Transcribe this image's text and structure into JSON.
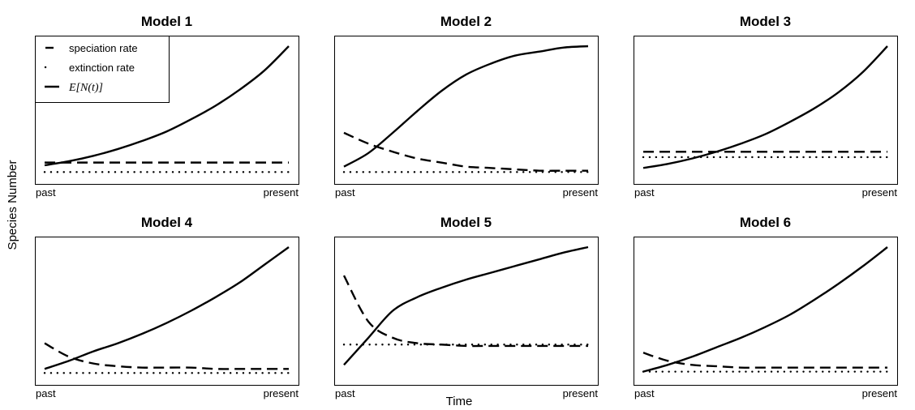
{
  "figure": {
    "ylabel": "Species Number",
    "xlabel": "Time"
  },
  "chart_data": [
    {
      "type": "line",
      "title": "Model 1",
      "x_tick_labels": [
        "past",
        "present"
      ],
      "xlim": [
        0,
        1
      ],
      "ylim": [
        0,
        1
      ],
      "legend": {
        "placement": "top-left",
        "entries": [
          {
            "label": "speciation rate",
            "style": "dashed"
          },
          {
            "label": "extinction rate",
            "style": "dotted"
          },
          {
            "label": "E[N(t)]",
            "style": "solid"
          }
        ]
      },
      "series": [
        {
          "name": "speciation rate",
          "style": "dashed",
          "x": [
            0,
            1
          ],
          "y": [
            0.11,
            0.11
          ]
        },
        {
          "name": "extinction rate",
          "style": "dotted",
          "x": [
            0,
            1
          ],
          "y": [
            0.04,
            0.04
          ]
        },
        {
          "name": "E[N(t)]",
          "style": "solid",
          "x": [
            0,
            0.1,
            0.2,
            0.3,
            0.4,
            0.5,
            0.6,
            0.7,
            0.8,
            0.9,
            1.0
          ],
          "y": [
            0.09,
            0.12,
            0.16,
            0.21,
            0.27,
            0.34,
            0.43,
            0.53,
            0.65,
            0.79,
            0.97
          ]
        }
      ]
    },
    {
      "type": "line",
      "title": "Model 2",
      "x_tick_labels": [
        "past",
        "present"
      ],
      "xlim": [
        0,
        1
      ],
      "ylim": [
        0,
        1
      ],
      "series": [
        {
          "name": "speciation rate",
          "style": "dashed",
          "x": [
            0,
            0.1,
            0.2,
            0.3,
            0.4,
            0.5,
            0.6,
            0.7,
            0.8,
            0.9,
            1.0
          ],
          "y": [
            0.33,
            0.25,
            0.19,
            0.14,
            0.11,
            0.08,
            0.07,
            0.06,
            0.05,
            0.05,
            0.05
          ]
        },
        {
          "name": "extinction rate",
          "style": "dotted",
          "x": [
            0,
            1
          ],
          "y": [
            0.04,
            0.04
          ]
        },
        {
          "name": "E[N(t)]",
          "style": "solid",
          "x": [
            0,
            0.1,
            0.2,
            0.3,
            0.4,
            0.5,
            0.6,
            0.7,
            0.8,
            0.9,
            1.0
          ],
          "y": [
            0.08,
            0.18,
            0.33,
            0.49,
            0.64,
            0.76,
            0.84,
            0.9,
            0.93,
            0.96,
            0.97
          ]
        }
      ]
    },
    {
      "type": "line",
      "title": "Model 3",
      "x_tick_labels": [
        "past",
        "present"
      ],
      "xlim": [
        0,
        1
      ],
      "ylim": [
        0,
        1
      ],
      "series": [
        {
          "name": "speciation rate",
          "style": "dashed",
          "x": [
            0,
            1
          ],
          "y": [
            0.19,
            0.19
          ]
        },
        {
          "name": "extinction rate",
          "style": "dotted",
          "x": [
            0,
            1
          ],
          "y": [
            0.15,
            0.15
          ]
        },
        {
          "name": "E[N(t)]",
          "style": "solid",
          "x": [
            0,
            0.1,
            0.2,
            0.3,
            0.4,
            0.5,
            0.6,
            0.7,
            0.8,
            0.9,
            1.0
          ],
          "y": [
            0.07,
            0.1,
            0.14,
            0.19,
            0.25,
            0.32,
            0.41,
            0.51,
            0.63,
            0.78,
            0.97
          ]
        }
      ]
    },
    {
      "type": "line",
      "title": "Model 4",
      "x_tick_labels": [
        "past",
        "present"
      ],
      "xlim": [
        0,
        1
      ],
      "ylim": [
        0,
        1
      ],
      "series": [
        {
          "name": "speciation rate",
          "style": "dashed",
          "x": [
            0,
            0.1,
            0.2,
            0.3,
            0.4,
            0.5,
            0.6,
            0.7,
            0.8,
            0.9,
            1.0
          ],
          "y": [
            0.26,
            0.16,
            0.11,
            0.09,
            0.08,
            0.08,
            0.08,
            0.07,
            0.07,
            0.07,
            0.07
          ]
        },
        {
          "name": "extinction rate",
          "style": "dotted",
          "x": [
            0,
            1
          ],
          "y": [
            0.04,
            0.04
          ]
        },
        {
          "name": "E[N(t)]",
          "style": "solid",
          "x": [
            0,
            0.1,
            0.2,
            0.3,
            0.4,
            0.5,
            0.6,
            0.7,
            0.8,
            0.9,
            1.0
          ],
          "y": [
            0.07,
            0.13,
            0.2,
            0.26,
            0.33,
            0.41,
            0.5,
            0.6,
            0.71,
            0.84,
            0.97
          ]
        }
      ]
    },
    {
      "type": "line",
      "title": "Model 5",
      "x_tick_labels": [
        "past",
        "present"
      ],
      "xlim": [
        0,
        1
      ],
      "ylim": [
        0,
        1
      ],
      "series": [
        {
          "name": "speciation rate",
          "style": "dashed",
          "x": [
            0,
            0.1,
            0.2,
            0.3,
            0.4,
            0.5,
            0.6,
            0.7,
            0.8,
            0.9,
            1.0
          ],
          "y": [
            0.76,
            0.42,
            0.3,
            0.26,
            0.25,
            0.24,
            0.24,
            0.24,
            0.24,
            0.24,
            0.24
          ]
        },
        {
          "name": "extinction rate",
          "style": "dotted",
          "x": [
            0,
            1
          ],
          "y": [
            0.25,
            0.25
          ]
        },
        {
          "name": "E[N(t)]",
          "style": "solid",
          "x": [
            0,
            0.1,
            0.2,
            0.3,
            0.4,
            0.5,
            0.6,
            0.7,
            0.8,
            0.9,
            1.0
          ],
          "y": [
            0.1,
            0.3,
            0.5,
            0.6,
            0.67,
            0.73,
            0.78,
            0.83,
            0.88,
            0.93,
            0.97
          ]
        }
      ]
    },
    {
      "type": "line",
      "title": "Model 6",
      "x_tick_labels": [
        "past",
        "present"
      ],
      "xlim": [
        0,
        1
      ],
      "ylim": [
        0,
        1
      ],
      "series": [
        {
          "name": "speciation rate",
          "style": "dashed",
          "x": [
            0,
            0.1,
            0.2,
            0.3,
            0.4,
            0.5,
            0.6,
            0.7,
            0.8,
            0.9,
            1.0
          ],
          "y": [
            0.19,
            0.13,
            0.1,
            0.09,
            0.08,
            0.08,
            0.08,
            0.08,
            0.08,
            0.08,
            0.08
          ]
        },
        {
          "name": "extinction rate",
          "style": "dotted",
          "x": [
            0,
            1
          ],
          "y": [
            0.05,
            0.05
          ]
        },
        {
          "name": "E[N(t)]",
          "style": "solid",
          "x": [
            0,
            0.1,
            0.2,
            0.3,
            0.4,
            0.5,
            0.6,
            0.7,
            0.8,
            0.9,
            1.0
          ],
          "y": [
            0.05,
            0.1,
            0.16,
            0.23,
            0.3,
            0.38,
            0.47,
            0.58,
            0.7,
            0.83,
            0.97
          ]
        }
      ]
    }
  ]
}
